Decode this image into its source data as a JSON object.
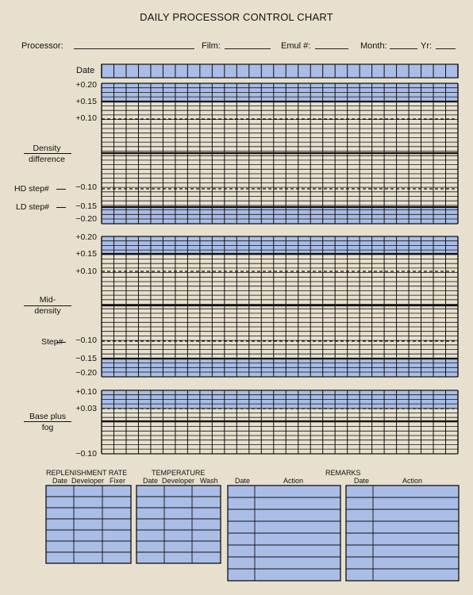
{
  "title": "DAILY PROCESSOR CONTROL CHART",
  "header": {
    "processor_label": "Processor:",
    "film_label": "Film:",
    "emul_label": "Emul #:",
    "month_label": "Month:",
    "yr_label": "Yr:"
  },
  "date_label": "Date",
  "sections": {
    "density_difference": {
      "label_line1": "Density",
      "label_line2": "difference",
      "hd_step_label": "HD step#",
      "ld_step_label": "LD step#",
      "ticks": [
        "+0.20",
        "+0.15",
        "+0.10",
        "−0.10",
        "−0.15",
        "−0.20"
      ]
    },
    "mid_density": {
      "label_line1": "Mid-",
      "label_line2": "density",
      "step_label": "Step#",
      "ticks": [
        "+0.20",
        "+0.15",
        "+0.10",
        "−0.10",
        "−0.15",
        "−0.20"
      ]
    },
    "base_plus_fog": {
      "label_line1": "Base plus",
      "label_line2": "fog",
      "ticks": [
        "+0.10",
        "+0.03",
        "−0.10"
      ]
    }
  },
  "bottom": {
    "replenishment_title": "REPLENISHMENT RATE",
    "replenishment_cols": [
      "Date",
      "Developer",
      "Fixer"
    ],
    "temperature_title": "TEMPERATURE",
    "temperature_cols": [
      "Date",
      "Developer",
      "Wash"
    ],
    "remarks_title": "REMARKS",
    "remarks_cols_left": [
      "Date",
      "Action"
    ],
    "remarks_cols_right": [
      "Date",
      "Action"
    ]
  },
  "colors": {
    "background": "#e8e0ce",
    "blue_fill": "#aabde6",
    "line": "#111111"
  }
}
